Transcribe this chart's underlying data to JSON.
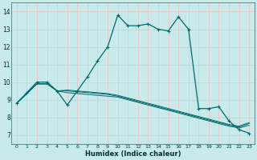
{
  "xlabel": "Humidex (Indice chaleur)",
  "xlim": [
    -0.5,
    23.5
  ],
  "ylim": [
    6.5,
    14.5
  ],
  "xticks": [
    0,
    1,
    2,
    3,
    4,
    5,
    6,
    7,
    8,
    9,
    10,
    11,
    12,
    13,
    14,
    15,
    16,
    17,
    18,
    19,
    20,
    21,
    22,
    23
  ],
  "yticks": [
    7,
    8,
    9,
    10,
    11,
    12,
    13,
    14
  ],
  "bg_color": "#c9eaea",
  "grid_color": "#e8c8c8",
  "line_color": "#006b6b",
  "lines": [
    {
      "x": [
        0,
        1,
        2,
        3,
        4,
        5,
        6,
        7,
        8,
        9,
        10,
        11,
        12,
        13,
        14,
        15,
        16,
        17,
        18,
        19,
        20,
        21,
        22,
        23
      ],
      "y": [
        8.8,
        9.4,
        10.0,
        10.0,
        9.5,
        8.7,
        9.5,
        10.3,
        11.2,
        12.0,
        13.8,
        13.2,
        13.2,
        13.3,
        13.0,
        12.9,
        13.7,
        13.0,
        8.5,
        8.5,
        8.6,
        7.8,
        7.3,
        7.1
      ],
      "marker": true
    },
    {
      "x": [
        0,
        2,
        3,
        4,
        5,
        6,
        7,
        8,
        9,
        10,
        11,
        12,
        13,
        14,
        15,
        16,
        17,
        18,
        19,
        20,
        21,
        22,
        23
      ],
      "y": [
        8.8,
        9.9,
        9.9,
        9.5,
        9.4,
        9.35,
        9.3,
        9.25,
        9.2,
        9.15,
        9.0,
        8.85,
        8.7,
        8.55,
        8.4,
        8.25,
        8.1,
        7.95,
        7.8,
        7.65,
        7.5,
        7.4,
        7.55
      ],
      "marker": false
    },
    {
      "x": [
        0,
        2,
        3,
        4,
        5,
        6,
        7,
        8,
        9,
        10,
        11,
        12,
        13,
        14,
        15,
        16,
        17,
        18,
        19,
        20,
        21,
        22,
        23
      ],
      "y": [
        8.8,
        9.9,
        9.9,
        9.5,
        9.5,
        9.45,
        9.4,
        9.35,
        9.3,
        9.2,
        9.05,
        8.9,
        8.75,
        8.6,
        8.45,
        8.3,
        8.15,
        8.0,
        7.85,
        7.7,
        7.55,
        7.45,
        7.65
      ],
      "marker": false
    },
    {
      "x": [
        0,
        2,
        3,
        4,
        5,
        6,
        7,
        8,
        9,
        10,
        11,
        12,
        13,
        14,
        15,
        16,
        17,
        18,
        19,
        20,
        21,
        22,
        23
      ],
      "y": [
        8.8,
        9.9,
        9.9,
        9.5,
        9.55,
        9.5,
        9.45,
        9.4,
        9.35,
        9.25,
        9.1,
        8.95,
        8.8,
        8.65,
        8.5,
        8.35,
        8.2,
        8.05,
        7.9,
        7.75,
        7.6,
        7.5,
        7.7
      ],
      "marker": false
    }
  ]
}
